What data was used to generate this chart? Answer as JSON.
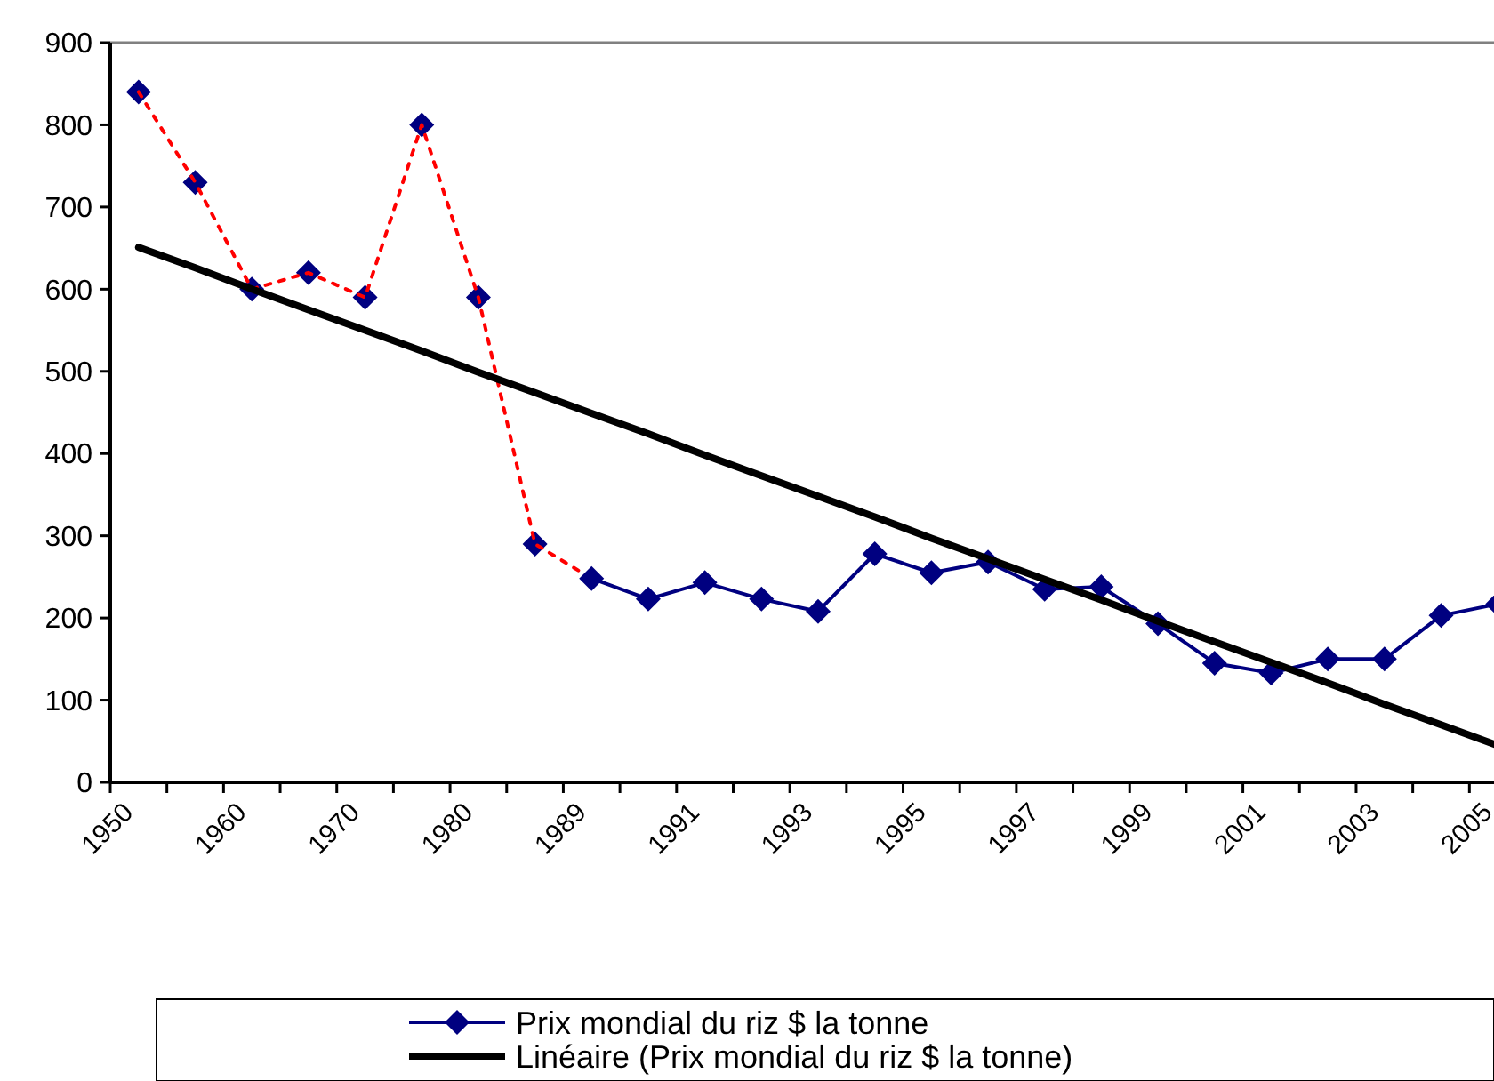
{
  "chart_data": {
    "type": "line",
    "categories": [
      "1950",
      null,
      "1960",
      null,
      "1970",
      null,
      "1980",
      null,
      "1989",
      null,
      "1991",
      null,
      "1993",
      null,
      "1995",
      null,
      "1997",
      null,
      "1999",
      null,
      "2001",
      null,
      "2003",
      null,
      "2005"
    ],
    "ylim": [
      0,
      900
    ],
    "yticks": [
      0,
      100,
      200,
      300,
      400,
      500,
      600,
      700,
      800,
      900
    ],
    "grid": false,
    "legend": "bottom",
    "marker": "diamond",
    "series": [
      {
        "type": "scatter",
        "color": "#000080",
        "values": [
          840,
          730,
          600,
          620,
          590,
          800,
          590,
          290,
          null,
          null,
          null,
          null,
          null,
          null,
          null,
          null,
          null,
          null,
          null,
          null,
          null,
          null,
          null,
          null,
          null
        ]
      },
      {
        "type": "line",
        "color": "#ff0000",
        "line_style": "dotted",
        "marker": "none",
        "values": [
          840,
          730,
          600,
          620,
          590,
          800,
          590,
          290,
          248,
          null,
          null,
          null,
          null,
          null,
          null,
          null,
          null,
          null,
          null,
          null,
          null,
          null,
          null,
          null,
          null
        ]
      },
      {
        "name": "Prix mondial du riz $ la tonne",
        "type": "line",
        "color": "#000080",
        "values": [
          null,
          null,
          null,
          null,
          null,
          null,
          null,
          null,
          248,
          223,
          243,
          223,
          208,
          278,
          255,
          268,
          235,
          238,
          193,
          145,
          133,
          150,
          150,
          203,
          217
        ]
      },
      {
        "name": "Linéaire (Prix mondial du riz $ la tonne)",
        "type": "line",
        "color": "#000000",
        "marker": "none",
        "values": [
          651,
          626,
          600,
          575,
          550,
          525,
          499,
          474,
          449,
          424,
          398,
          373,
          348,
          323,
          297,
          272,
          247,
          222,
          196,
          171,
          146,
          121,
          95,
          70,
          45
        ]
      }
    ]
  }
}
